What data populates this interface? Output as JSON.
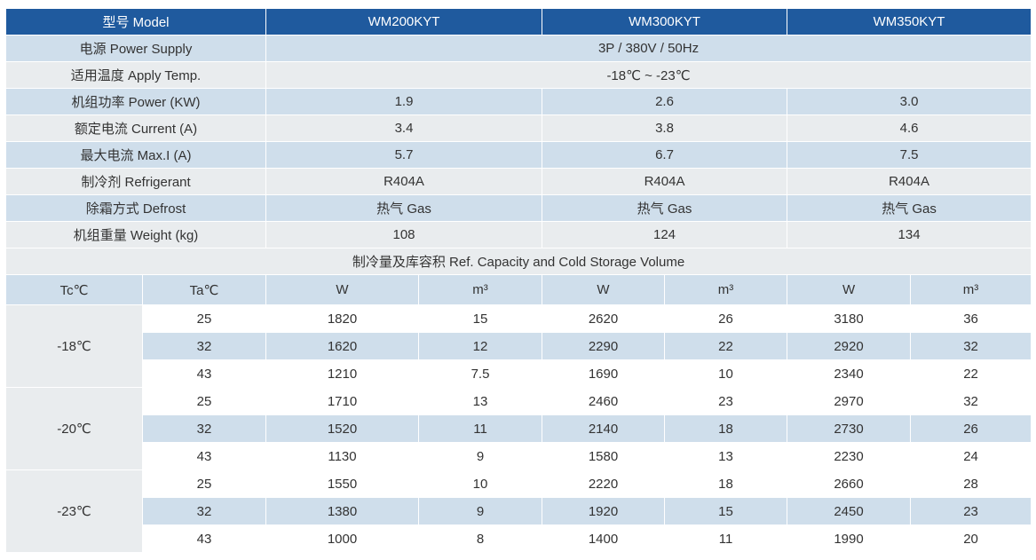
{
  "header": {
    "label": "型号 Model",
    "models": [
      "WM200KYT",
      "WM300KYT",
      "WM350KYT"
    ]
  },
  "specs": [
    {
      "label": "电源 Power Supply",
      "shared": "3P / 380V / 50Hz"
    },
    {
      "label": "适用温度 Apply Temp.",
      "shared": "-18℃ ~ -23℃"
    },
    {
      "label": "机组功率 Power (KW)",
      "values": [
        "1.9",
        "2.6",
        "3.0"
      ]
    },
    {
      "label": "额定电流 Current (A)",
      "values": [
        "3.4",
        "3.8",
        "4.6"
      ]
    },
    {
      "label": "最大电流 Max.I (A)",
      "values": [
        "5.7",
        "6.7",
        "7.5"
      ]
    },
    {
      "label": "制冷剂 Refrigerant",
      "values": [
        "R404A",
        "R404A",
        "R404A"
      ]
    },
    {
      "label": "除霜方式 Defrost",
      "values": [
        "热气 Gas",
        "热气 Gas",
        "热气 Gas"
      ]
    },
    {
      "label": "机组重量 Weight (kg)",
      "values": [
        "108",
        "124",
        "134"
      ]
    }
  ],
  "capacity": {
    "title": "制冷量及库容积 Ref. Capacity and Cold Storage Volume",
    "columns": [
      "Tc℃",
      "Ta℃",
      "W",
      "m³",
      "W",
      "m³",
      "W",
      "m³"
    ],
    "groups": [
      {
        "tc": "-18℃",
        "rows": [
          [
            "25",
            "1820",
            "15",
            "2620",
            "26",
            "3180",
            "36"
          ],
          [
            "32",
            "1620",
            "12",
            "2290",
            "22",
            "2920",
            "32"
          ],
          [
            "43",
            "1210",
            "7.5",
            "1690",
            "10",
            "2340",
            "22"
          ]
        ]
      },
      {
        "tc": "-20℃",
        "rows": [
          [
            "25",
            "1710",
            "13",
            "2460",
            "23",
            "2970",
            "32"
          ],
          [
            "32",
            "1520",
            "11",
            "2140",
            "18",
            "2730",
            "26"
          ],
          [
            "43",
            "1130",
            "9",
            "1580",
            "13",
            "2230",
            "24"
          ]
        ]
      },
      {
        "tc": "-23℃",
        "rows": [
          [
            "25",
            "1550",
            "10",
            "2220",
            "18",
            "2660",
            "28"
          ],
          [
            "32",
            "1380",
            "9",
            "1920",
            "15",
            "2450",
            "23"
          ],
          [
            "43",
            "1000",
            "8",
            "1400",
            "11",
            "1990",
            "20"
          ]
        ]
      }
    ]
  }
}
